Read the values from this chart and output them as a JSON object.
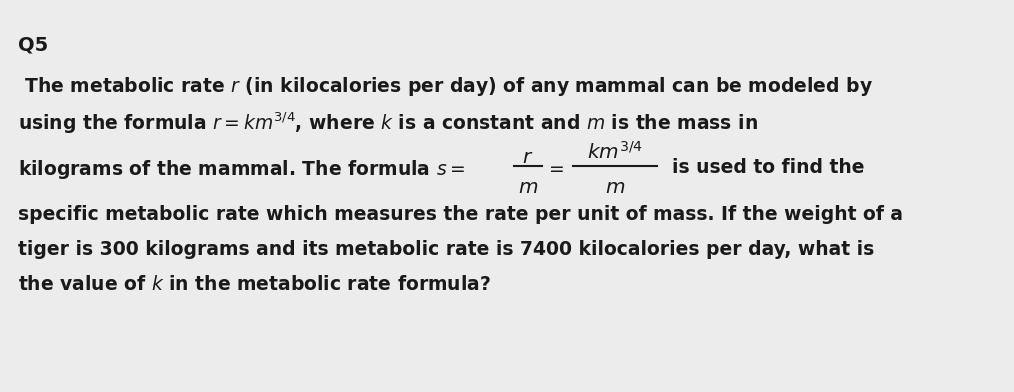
{
  "background_color": "#ececec",
  "title": "Q5",
  "title_fontsize": 14,
  "body_fontsize": 13.5,
  "text_color": "#1a1a1a",
  "line1": " The metabolic rate $r$ (in kilocalories per day) of any mammal can be modeled by",
  "line2": "using the formula $r = km^{3/4}$, where $k$ is a constant and $m$ is the mass in",
  "line3_left": "kilograms of the mammal. The formula $s=$",
  "line4": "specific metabolic rate which measures the rate per unit of mass. If the weight of a",
  "line5": "tiger is 300 kilograms and its metabolic rate is 7400 kilocalories per day, what is",
  "line6": "the value of $k$ in the metabolic rate formula?"
}
